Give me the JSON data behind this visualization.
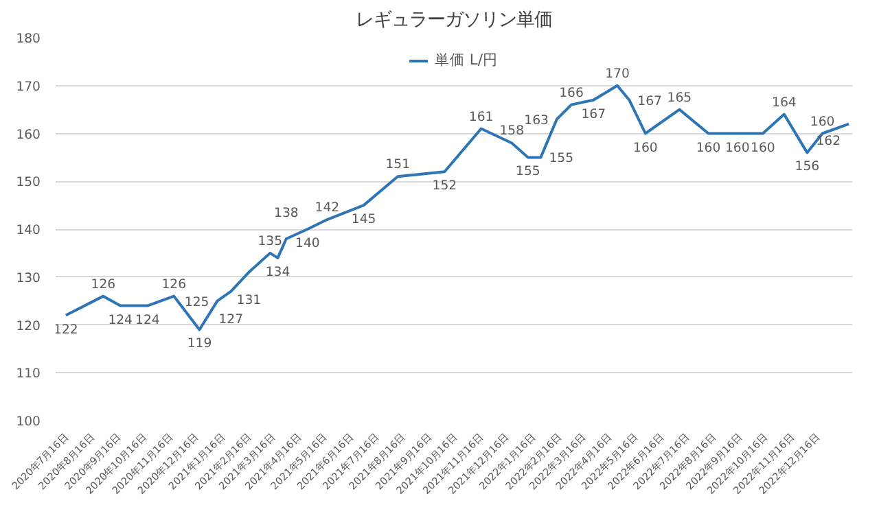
{
  "chart_data": {
    "type": "line",
    "title": "レギュラーガソリン単価",
    "x": [
      "2020-07-16",
      "2020-08-29",
      "2020-09-18",
      "2020-10-20",
      "2020-11-20",
      "2020-12-20",
      "2021-01-10",
      "2021-01-26",
      "2021-02-16",
      "2021-03-13",
      "2021-03-22",
      "2021-04-01",
      "2021-04-26",
      "2021-05-19",
      "2021-07-01",
      "2021-08-10",
      "2021-10-04",
      "2021-11-16",
      "2021-12-22",
      "2022-01-10",
      "2022-01-25",
      "2022-02-13",
      "2022-03-02",
      "2022-03-28",
      "2022-04-25",
      "2022-05-09",
      "2022-05-28",
      "2022-07-07",
      "2022-08-10",
      "2022-09-13",
      "2022-10-13",
      "2022-11-07",
      "2022-12-04",
      "2022-12-22",
      "2023-01-22"
    ],
    "series": [
      {
        "name": "単価 L/円",
        "color": "#2e75b6",
        "values": [
          122,
          126,
          124,
          124,
          126,
          119,
          125,
          127,
          131,
          135,
          134,
          138,
          140,
          142,
          145,
          151,
          152,
          161,
          158,
          155,
          155,
          163,
          166,
          167,
          170,
          167,
          160,
          165,
          160,
          160,
          160,
          164,
          156,
          160,
          162
        ]
      }
    ],
    "data_labels": true,
    "ylim": [
      100,
      180
    ],
    "yticks": [
      100,
      110,
      120,
      130,
      140,
      150,
      160,
      170,
      180
    ],
    "xlim": [
      "2020-07-04",
      "2023-01-26"
    ],
    "xticks": [
      {
        "value": "2020-07-16",
        "label": "2020年7月16日"
      },
      {
        "value": "2020-08-16",
        "label": "2020年8月16日"
      },
      {
        "value": "2020-09-16",
        "label": "2020年9月16日"
      },
      {
        "value": "2020-10-16",
        "label": "2020年10月16日"
      },
      {
        "value": "2020-11-16",
        "label": "2020年11月16日"
      },
      {
        "value": "2020-12-16",
        "label": "2020年12月16日"
      },
      {
        "value": "2021-01-16",
        "label": "2021年1月16日"
      },
      {
        "value": "2021-02-16",
        "label": "2021年2月16日"
      },
      {
        "value": "2021-03-16",
        "label": "2021年3月16日"
      },
      {
        "value": "2021-04-16",
        "label": "2021年4月16日"
      },
      {
        "value": "2021-05-16",
        "label": "2021年5月16日"
      },
      {
        "value": "2021-06-16",
        "label": "2021年6月16日"
      },
      {
        "value": "2021-07-16",
        "label": "2021年7月16日"
      },
      {
        "value": "2021-08-16",
        "label": "2021年8月16日"
      },
      {
        "value": "2021-09-16",
        "label": "2021年9月16日"
      },
      {
        "value": "2021-10-16",
        "label": "2021年10月16日"
      },
      {
        "value": "2021-11-16",
        "label": "2021年11月16日"
      },
      {
        "value": "2021-12-16",
        "label": "2021年12月16日"
      },
      {
        "value": "2022-01-16",
        "label": "2022年1月16日"
      },
      {
        "value": "2022-02-16",
        "label": "2022年2月16日"
      },
      {
        "value": "2022-03-16",
        "label": "2022年3月16日"
      },
      {
        "value": "2022-04-16",
        "label": "2022年4月16日"
      },
      {
        "value": "2022-05-16",
        "label": "2022年5月16日"
      },
      {
        "value": "2022-06-16",
        "label": "2022年6月16日"
      },
      {
        "value": "2022-07-16",
        "label": "2022年7月16日"
      },
      {
        "value": "2022-08-16",
        "label": "2022年8月16日"
      },
      {
        "value": "2022-09-16",
        "label": "2022年9月16日"
      },
      {
        "value": "2022-10-16",
        "label": "2022年10月16日"
      },
      {
        "value": "2022-11-16",
        "label": "2022年11月16日"
      },
      {
        "value": "2022-12-16",
        "label": "2022年12月16日"
      }
    ],
    "grid": "y",
    "legend": "top",
    "line_style": "solid"
  }
}
